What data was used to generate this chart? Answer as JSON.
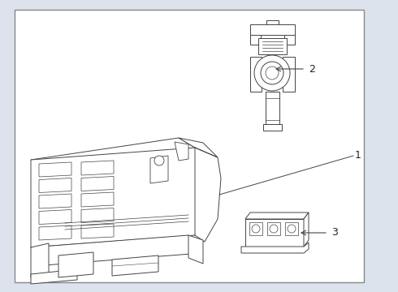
{
  "bg_color": "#dce3ec",
  "box_bg": "#ffffff",
  "border_color": "#666666",
  "lc": "#444444",
  "lw": 0.7,
  "fig_width": 4.9,
  "fig_height": 3.6,
  "dpi": 100
}
